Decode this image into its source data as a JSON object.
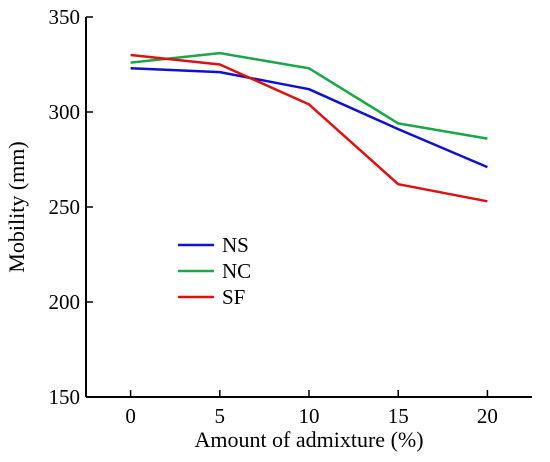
{
  "chart_data": {
    "type": "line",
    "title": "",
    "xlabel": "Amount of admixture (%)",
    "ylabel": "Mobility (mm)",
    "x": [
      0,
      5,
      10,
      15,
      20
    ],
    "xticks": [
      0,
      5,
      10,
      15,
      20
    ],
    "yticks": [
      150,
      200,
      250,
      300,
      350
    ],
    "xlim": [
      -2.5,
      22.5
    ],
    "ylim": [
      150,
      350
    ],
    "grid": false,
    "legend_position": "center-left",
    "series": [
      {
        "name": "NS",
        "color": "#1010d0",
        "values": [
          323,
          321,
          312,
          291,
          271
        ]
      },
      {
        "name": "NC",
        "color": "#18a848",
        "values": [
          326,
          331,
          323,
          294,
          286
        ]
      },
      {
        "name": "SF",
        "color": "#e01010",
        "values": [
          330,
          325,
          304,
          262,
          253
        ]
      }
    ]
  }
}
